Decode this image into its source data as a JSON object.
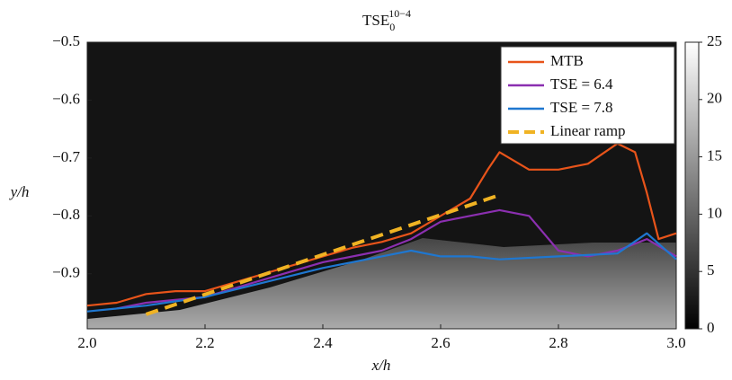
{
  "chart_data": {
    "type": "line",
    "title": {
      "main": "TSE",
      "sub": "0",
      "sup": "10−4"
    },
    "xlabel": "x/h",
    "ylabel": "y/h",
    "xlim": [
      2.0,
      3.0
    ],
    "ylim": [
      -0.995,
      -0.5
    ],
    "xticks": [
      {
        "value": 2,
        "label": "2.0"
      },
      {
        "value": 2.2,
        "label": "2.2"
      },
      {
        "value": 2.4,
        "label": "2.4"
      },
      {
        "value": 2.6,
        "label": "2.6"
      },
      {
        "value": 2.8,
        "label": "2.8"
      },
      {
        "value": 3,
        "label": "3.0"
      }
    ],
    "yticks": [
      {
        "value": -0.5,
        "label": "−0.5"
      },
      {
        "value": -0.6,
        "label": "−0.6"
      },
      {
        "value": -0.7,
        "label": "−0.7"
      },
      {
        "value": -0.8,
        "label": "−0.8"
      },
      {
        "value": -0.9,
        "label": "−0.9"
      }
    ],
    "legend": "upper right",
    "series": [
      {
        "name": "MTB",
        "color": "#e8541a",
        "dash": false,
        "x": [
          2.0,
          2.05,
          2.1,
          2.15,
          2.2,
          2.25,
          2.3,
          2.35,
          2.4,
          2.45,
          2.5,
          2.55,
          2.6,
          2.65,
          2.68,
          2.7,
          2.75,
          2.8,
          2.85,
          2.9,
          2.93,
          2.95,
          2.97,
          3.0
        ],
        "values": [
          -0.955,
          -0.95,
          -0.935,
          -0.93,
          -0.93,
          -0.915,
          -0.9,
          -0.885,
          -0.87,
          -0.855,
          -0.845,
          -0.83,
          -0.8,
          -0.77,
          -0.72,
          -0.69,
          -0.72,
          -0.72,
          -0.71,
          -0.675,
          -0.69,
          -0.76,
          -0.84,
          -0.83
        ]
      },
      {
        "name": "TSE = 6.4",
        "color": "#8b2fb0",
        "dash": false,
        "x": [
          2.05,
          2.1,
          2.2,
          2.3,
          2.4,
          2.5,
          2.55,
          2.6,
          2.65,
          2.7,
          2.75,
          2.8,
          2.85,
          2.9,
          2.95,
          3.0
        ],
        "values": [
          -0.96,
          -0.95,
          -0.94,
          -0.91,
          -0.88,
          -0.86,
          -0.84,
          -0.81,
          -0.8,
          -0.79,
          -0.8,
          -0.86,
          -0.87,
          -0.86,
          -0.84,
          -0.87
        ]
      },
      {
        "name": "TSE = 7.8",
        "color": "#1f77d0",
        "dash": false,
        "x": [
          2.0,
          2.1,
          2.2,
          2.3,
          2.4,
          2.5,
          2.55,
          2.6,
          2.65,
          2.7,
          2.8,
          2.9,
          2.95,
          3.0
        ],
        "values": [
          -0.965,
          -0.955,
          -0.94,
          -0.915,
          -0.89,
          -0.87,
          -0.86,
          -0.87,
          -0.87,
          -0.875,
          -0.87,
          -0.865,
          -0.83,
          -0.875
        ]
      },
      {
        "name": "Linear ramp",
        "color": "#f0b323",
        "dash": true,
        "x": [
          2.1,
          2.7
        ],
        "values": [
          -0.97,
          -0.764
        ]
      }
    ],
    "colorbar": {
      "lim": [
        0,
        25
      ],
      "ticks": [
        0,
        5,
        10,
        15,
        20,
        25
      ]
    }
  }
}
